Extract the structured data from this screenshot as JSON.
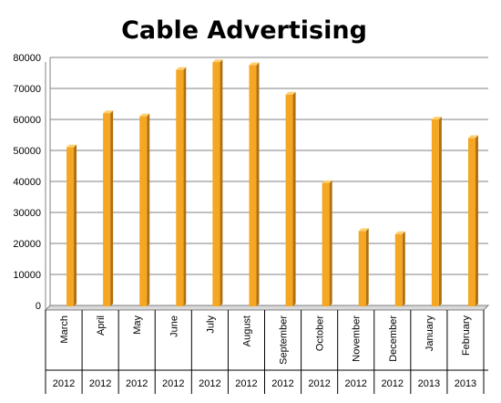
{
  "chart_data": {
    "type": "bar",
    "title": "Cable Advertising",
    "xlabel": "",
    "ylabel": "",
    "ylim": [
      0,
      80000
    ],
    "yticks": [
      0,
      10000,
      20000,
      30000,
      40000,
      50000,
      60000,
      70000,
      80000
    ],
    "grid": true,
    "legend": "none",
    "categories": [
      "March",
      "April",
      "May",
      "June",
      "July",
      "August",
      "September",
      "October",
      "November",
      "December",
      "January",
      "February"
    ],
    "years": [
      "2012",
      "2012",
      "2012",
      "2012",
      "2012",
      "2012",
      "2012",
      "2012",
      "2012",
      "2012",
      "2013",
      "2013"
    ],
    "values": [
      51000,
      62000,
      61000,
      76000,
      78500,
      77500,
      68000,
      39500,
      24000,
      23000,
      60000,
      54000
    ],
    "colors": {
      "bar": "#F5A623",
      "bar_side": "#B07010",
      "bar_top": "#FFD070",
      "grid": "#808080"
    }
  }
}
